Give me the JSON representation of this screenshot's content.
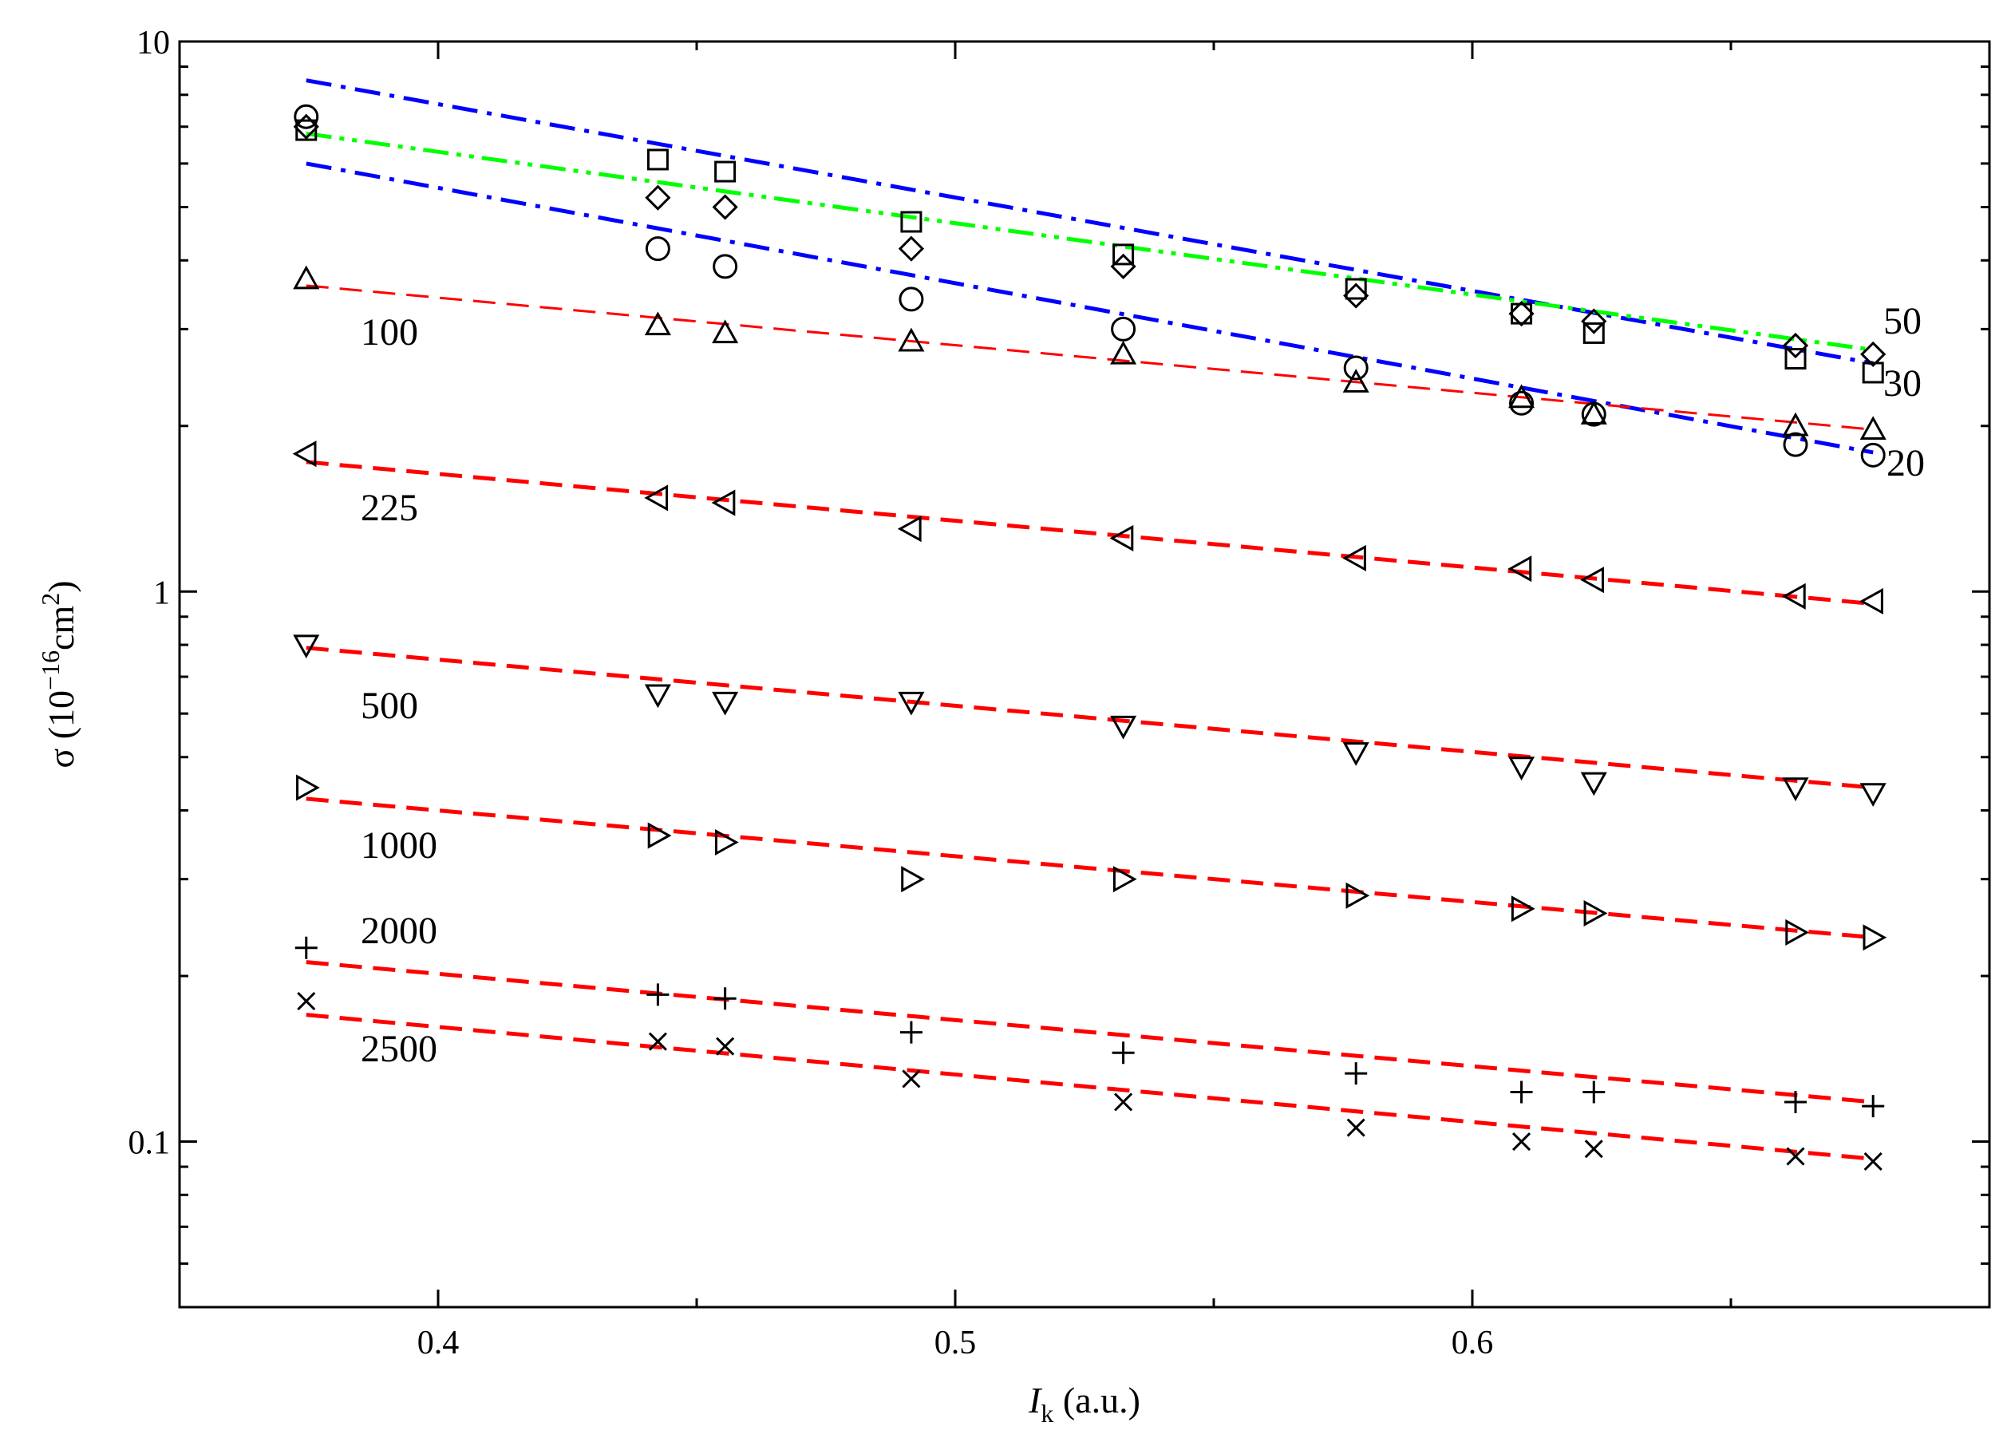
{
  "chart_data": {
    "type": "scatter",
    "title": "",
    "xlabel": {
      "main": "I",
      "sub": "k",
      "rest": " (a.u.)"
    },
    "ylabel": {
      "main": "σ (10",
      "sup1": "−16",
      "mid": "cm",
      "sup2": "2",
      "end": ")"
    },
    "x_scale": "linear",
    "y_scale": "log",
    "xlim": [
      0.35,
      0.7
    ],
    "ylim": [
      0.05,
      10
    ],
    "x_ticks": [
      0.4,
      0.5,
      0.6
    ],
    "x_tick_labels": [
      "0.4",
      "0.5",
      "0.6"
    ],
    "y_ticks": [
      0.1,
      1,
      10
    ],
    "y_tick_labels": [
      "0.1",
      "1",
      "10"
    ],
    "x": [
      0.3745,
      0.4425,
      0.4555,
      0.4915,
      0.5325,
      0.5775,
      0.6095,
      0.6235,
      0.6625,
      0.6775
    ],
    "series": [
      {
        "name": "20",
        "marker": "circle",
        "fit_color": "#0000ff",
        "fit_style": "dashdot",
        "values": [
          7.3,
          4.2,
          3.9,
          3.4,
          3.0,
          2.55,
          2.2,
          2.1,
          1.85,
          1.77
        ],
        "fit": [
          6.0,
          1.79
        ]
      },
      {
        "name": "30",
        "marker": "square",
        "fit_color": "#0000ff",
        "fit_style": "dashdot",
        "values": [
          6.9,
          6.1,
          5.8,
          4.7,
          4.1,
          3.55,
          3.2,
          2.95,
          2.65,
          2.5
        ],
        "fit": [
          8.5,
          2.6
        ]
      },
      {
        "name": "50",
        "marker": "diamond",
        "fit_color": "#00ff00",
        "fit_style": "dashdotdot",
        "values": [
          7.0,
          5.2,
          5.0,
          4.2,
          3.9,
          3.45,
          3.2,
          3.1,
          2.8,
          2.7
        ],
        "fit": [
          6.8,
          2.75
        ]
      },
      {
        "name": "100",
        "marker": "triangle-up",
        "fit_color": "#ff0000",
        "fit_style": "dashed",
        "values": [
          3.7,
          3.05,
          2.95,
          2.85,
          2.7,
          2.4,
          2.25,
          2.1,
          2.0,
          1.97
        ],
        "fit": [
          3.6,
          1.97
        ]
      },
      {
        "name": "225",
        "marker": "triangle-left",
        "fit_color": "#ff0000",
        "fit_style": "dashed",
        "values": [
          1.78,
          1.48,
          1.45,
          1.3,
          1.25,
          1.15,
          1.1,
          1.05,
          0.98,
          0.96
        ],
        "fit": [
          1.72,
          0.95
        ]
      },
      {
        "name": "500",
        "marker": "triangle-down",
        "fit_color": "#ff0000",
        "fit_style": "dashed",
        "values": [
          0.8,
          0.65,
          0.63,
          0.63,
          0.57,
          0.51,
          0.48,
          0.45,
          0.44,
          0.43
        ],
        "fit": [
          0.79,
          0.44
        ]
      },
      {
        "name": "1000",
        "marker": "triangle-right",
        "fit_color": "#ff0000",
        "fit_style": "dashed",
        "values": [
          0.44,
          0.36,
          0.35,
          0.3,
          0.3,
          0.28,
          0.265,
          0.26,
          0.24,
          0.235
        ],
        "fit": [
          0.42,
          0.235
        ]
      },
      {
        "name": "2000",
        "marker": "plus",
        "fit_color": "#ff0000",
        "fit_style": "dashed",
        "values": [
          0.225,
          0.185,
          0.182,
          0.158,
          0.145,
          0.133,
          0.123,
          0.123,
          0.118,
          0.116
        ],
        "fit": [
          0.212,
          0.118
        ]
      },
      {
        "name": "2500",
        "marker": "cross",
        "fit_color": "#ff0000",
        "fit_style": "dashed",
        "values": [
          0.18,
          0.152,
          0.149,
          0.13,
          0.118,
          0.106,
          0.1,
          0.097,
          0.094,
          0.092
        ],
        "fit": [
          0.17,
          0.093
        ]
      }
    ],
    "annotations": [
      {
        "text": "50",
        "series": "50"
      },
      {
        "text": "30",
        "series": "30"
      },
      {
        "text": "20",
        "series": "20"
      },
      {
        "text": "100",
        "series": "100"
      },
      {
        "text": "225",
        "series": "225"
      },
      {
        "text": "500",
        "series": "500"
      },
      {
        "text": "1000",
        "series": "1000"
      },
      {
        "text": "2000",
        "series": "2000"
      },
      {
        "text": "2500",
        "series": "2500"
      }
    ],
    "legend": "none",
    "grid": false
  }
}
